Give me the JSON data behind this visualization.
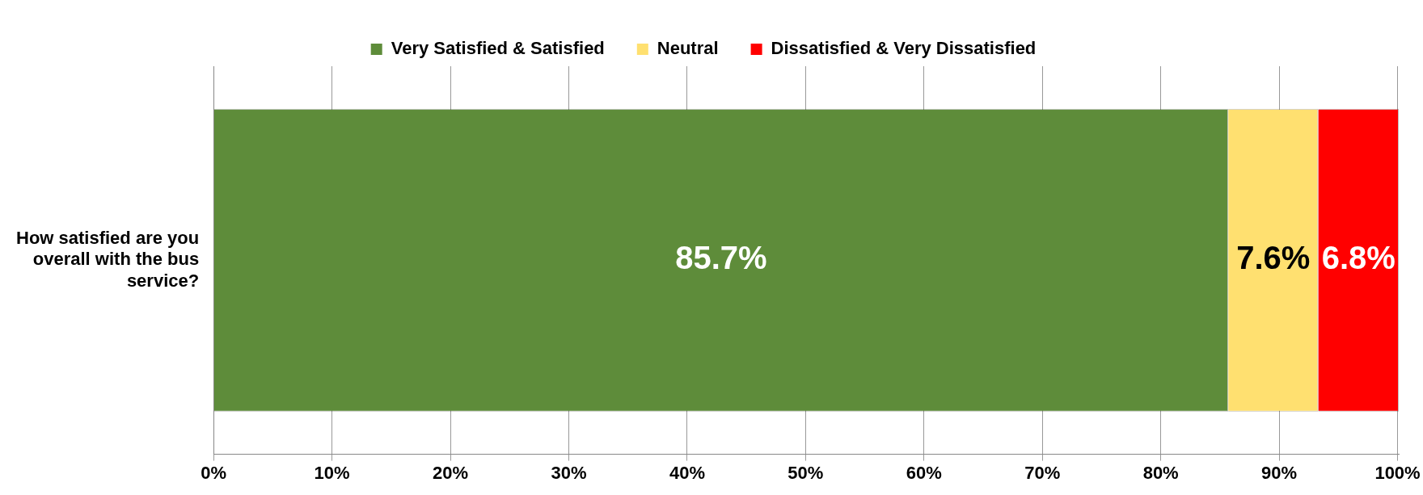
{
  "chart_data": {
    "type": "bar",
    "orientation": "horizontal",
    "stacked": true,
    "categories": [
      "How satisfied are you overall with the bus service?"
    ],
    "series": [
      {
        "name": "Very Satisfied & Satisfied",
        "color": "#5e8c3a",
        "values": [
          85.7
        ],
        "value_labels": [
          "85.7%"
        ]
      },
      {
        "name": "Neutral",
        "color": "#ffe070",
        "values": [
          7.6
        ],
        "value_labels": [
          "7.6%"
        ]
      },
      {
        "name": "Dissatisfied & Very Dissatisfied",
        "color": "#ff0000",
        "values": [
          6.8
        ],
        "value_labels": [
          "6.8%"
        ]
      }
    ],
    "xlim": [
      0,
      100.1
    ],
    "xticks": [
      {
        "value": 0,
        "label": "0%"
      },
      {
        "value": 10,
        "label": "10%"
      },
      {
        "value": 20,
        "label": "20%"
      },
      {
        "value": 30,
        "label": "30%"
      },
      {
        "value": 40,
        "label": "40%"
      },
      {
        "value": 50,
        "label": "50%"
      },
      {
        "value": 60,
        "label": "60%"
      },
      {
        "value": 70,
        "label": "70%"
      },
      {
        "value": 80,
        "label": "80%"
      },
      {
        "value": 90,
        "label": "90%"
      },
      {
        "value": 100,
        "label": "100%"
      }
    ],
    "grid": "x",
    "legend": "top"
  }
}
